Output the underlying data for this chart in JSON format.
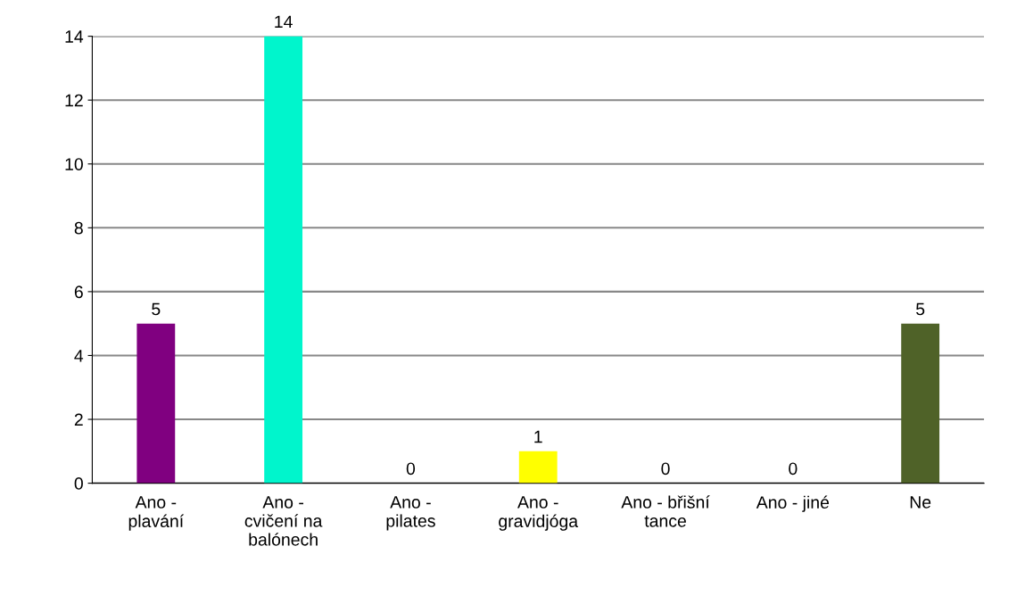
{
  "chart_data": {
    "type": "bar",
    "categories": [
      "Ano -\nplavání",
      "Ano -\ncvičení na\nbalónech",
      "Ano -\npilates",
      "Ano -\ngravidjóga",
      "Ano - břišní\ntance",
      "Ano - jiné",
      "Ne"
    ],
    "values": [
      5,
      14,
      0,
      1,
      0,
      0,
      5
    ],
    "colors": [
      "#800080",
      "#00f5cc",
      "#cc0044",
      "#ffff00",
      "#8b3a00",
      "#1f4e5f",
      "#4f6228"
    ],
    "ylim": [
      0,
      14
    ],
    "yticks": [
      0,
      2,
      4,
      6,
      8,
      10,
      12,
      14
    ],
    "grid": "y",
    "data_labels": true
  }
}
